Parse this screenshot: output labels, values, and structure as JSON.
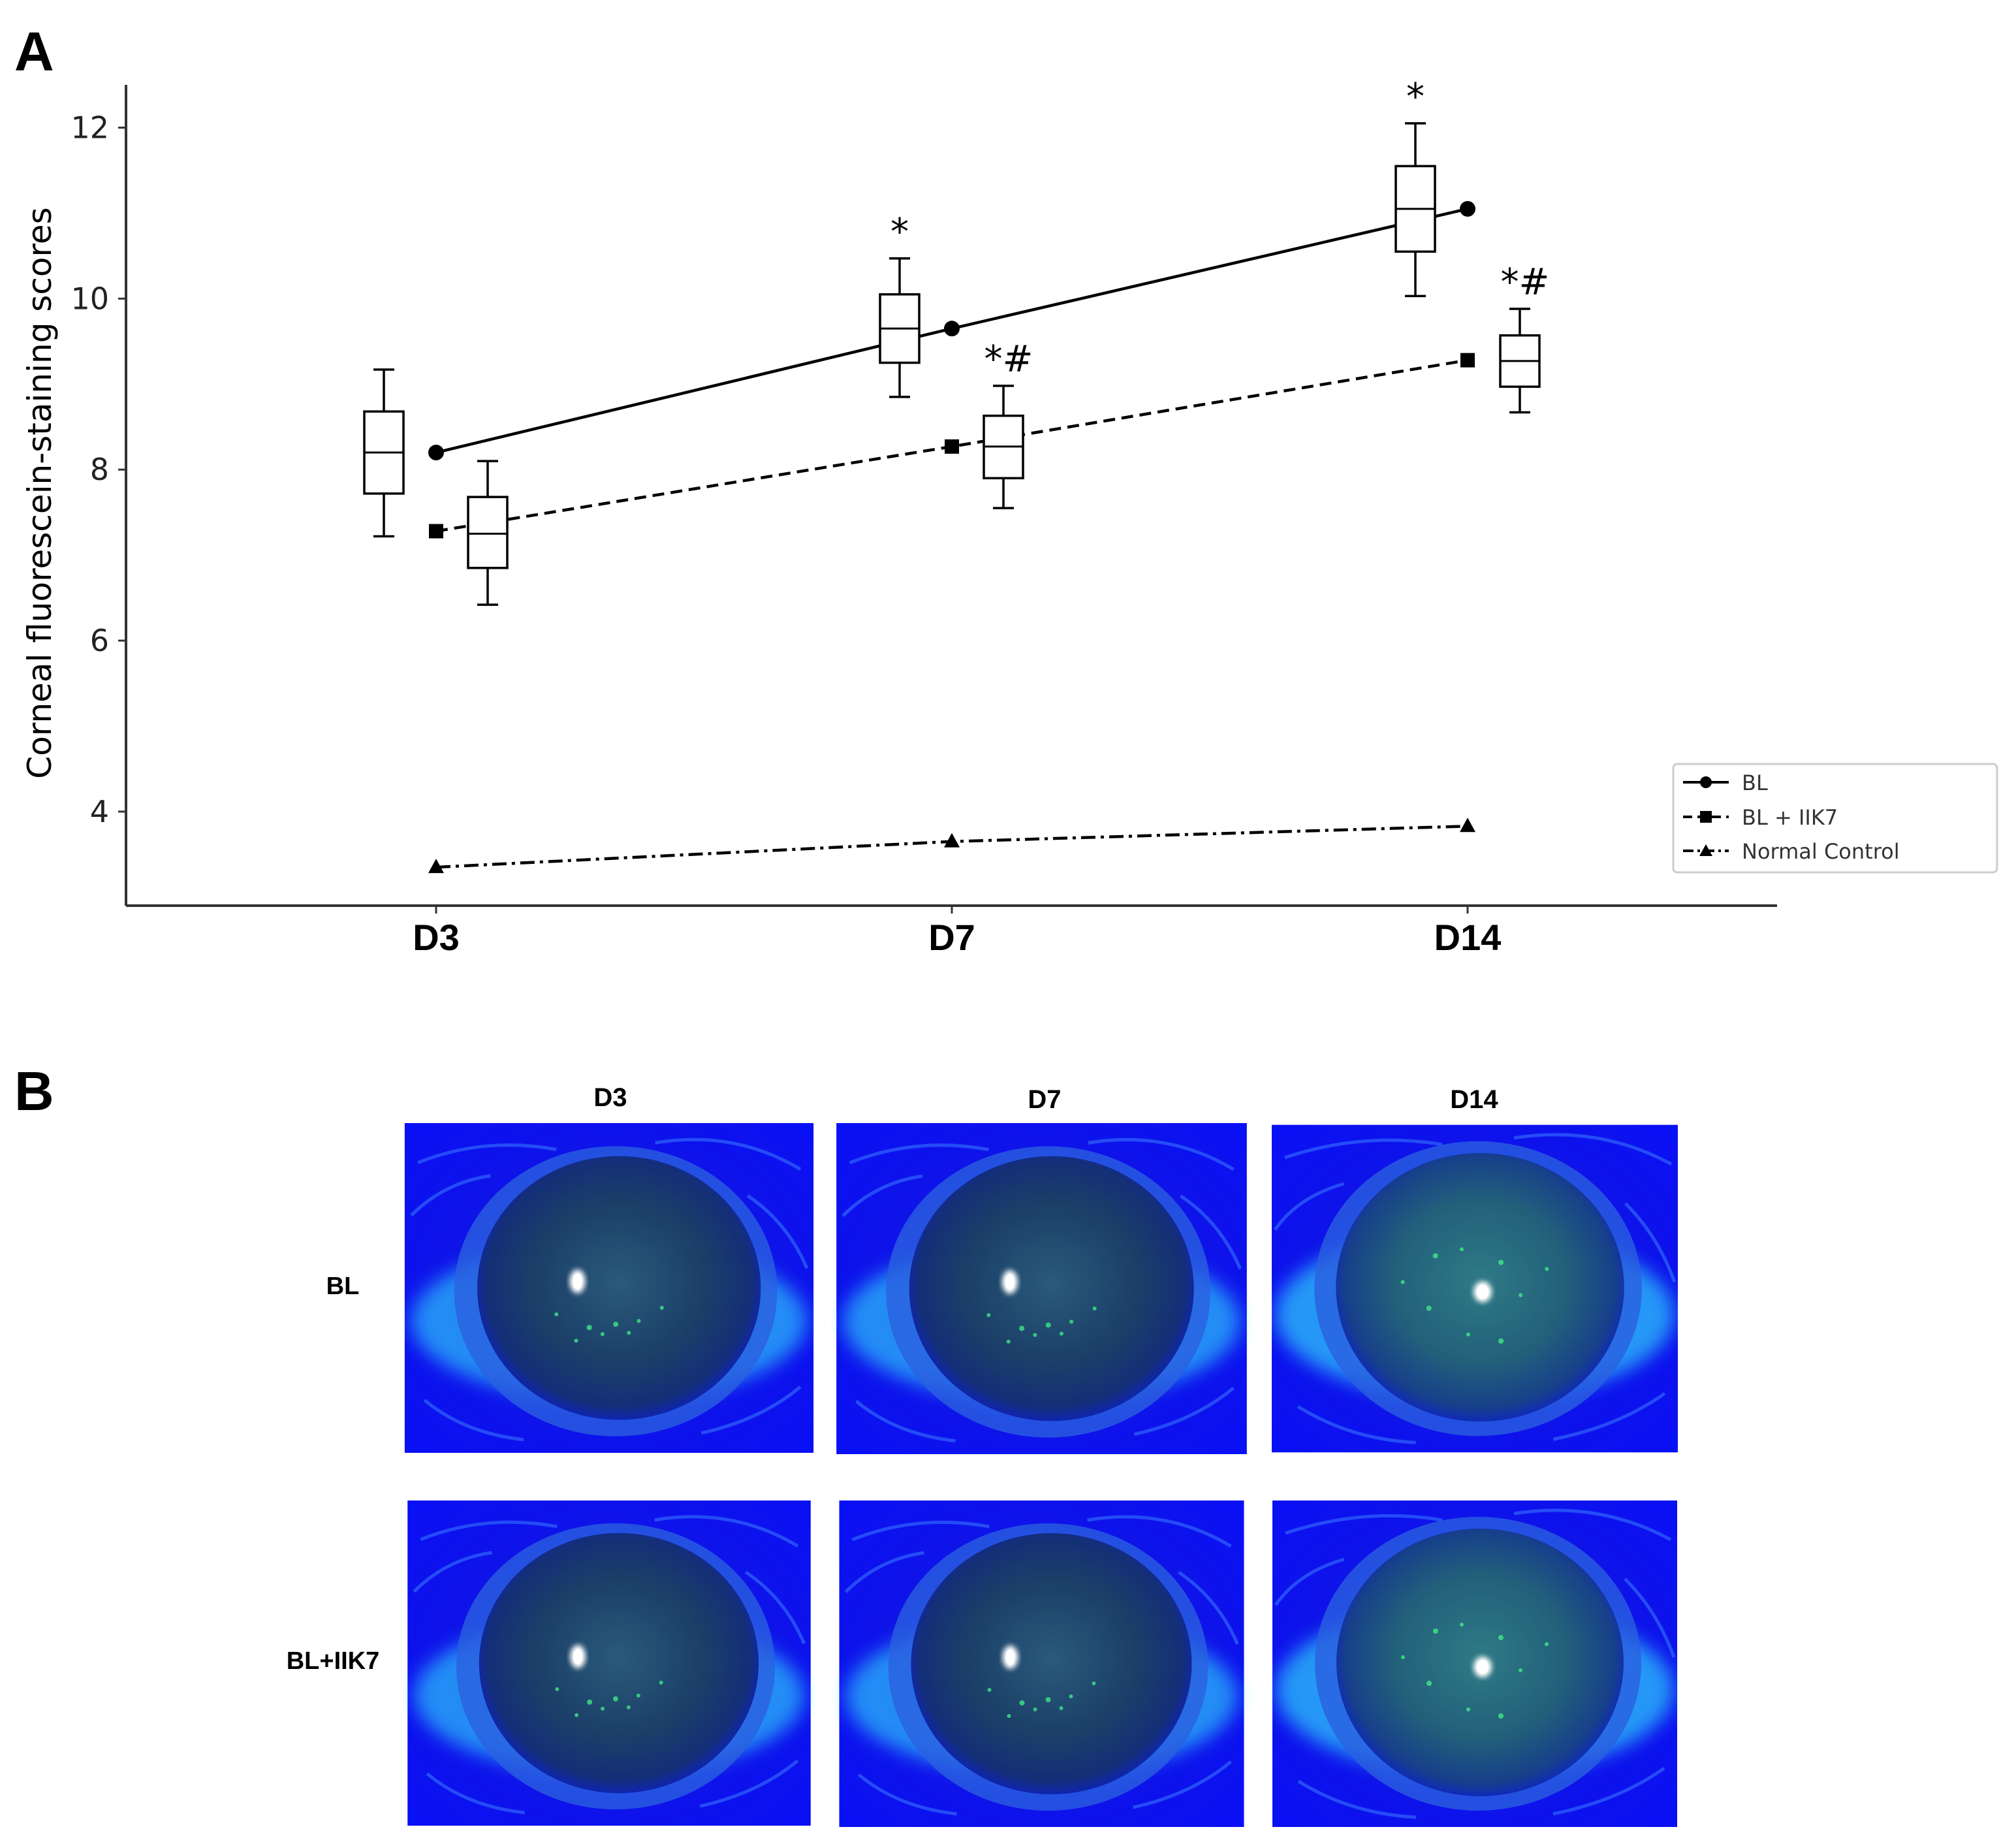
{
  "panels": {
    "a_label": "A",
    "b_label": "B"
  },
  "chart_data": {
    "type": "line",
    "title": "",
    "xlabel": "",
    "ylabel": "Corneal fluorescein-staining scores",
    "categories": [
      "D3",
      "D7",
      "D14"
    ],
    "ylim": [
      2.9,
      12.5
    ],
    "yticks": [
      4,
      6,
      8,
      10,
      12
    ],
    "grid": false,
    "legend_position": "bottom-right",
    "series": [
      {
        "name": "BL",
        "line_style": "solid",
        "marker": "circle",
        "values": [
          8.2,
          9.65,
          11.05
        ]
      },
      {
        "name": "BL + IIK7",
        "line_style": "dashed",
        "marker": "square",
        "values": [
          7.28,
          8.27,
          9.28
        ]
      },
      {
        "name": "Normal Control",
        "line_style": "dashdot",
        "marker": "triangle",
        "values": [
          3.35,
          3.65,
          3.83
        ]
      }
    ],
    "boxplots": [
      {
        "group": "BL",
        "category": "D3",
        "min": 7.22,
        "q1": 7.72,
        "median": 8.2,
        "q3": 8.68,
        "max": 9.17,
        "annotation": ""
      },
      {
        "group": "BL + IIK7",
        "category": "D3",
        "min": 6.42,
        "q1": 6.85,
        "median": 7.25,
        "q3": 7.68,
        "max": 8.1,
        "annotation": ""
      },
      {
        "group": "BL",
        "category": "D7",
        "min": 8.85,
        "q1": 9.25,
        "median": 9.65,
        "q3": 10.05,
        "max": 10.47,
        "annotation": "*"
      },
      {
        "group": "BL + IIK7",
        "category": "D7",
        "min": 7.55,
        "q1": 7.9,
        "median": 8.27,
        "q3": 8.63,
        "max": 8.98,
        "annotation": "*#"
      },
      {
        "group": "BL",
        "category": "D14",
        "min": 10.03,
        "q1": 10.55,
        "median": 11.05,
        "q3": 11.55,
        "max": 12.05,
        "annotation": "*"
      },
      {
        "group": "BL + IIK7",
        "category": "D14",
        "min": 8.67,
        "q1": 8.97,
        "median": 9.27,
        "q3": 9.57,
        "max": 9.88,
        "annotation": "*#"
      }
    ]
  },
  "image_grid": {
    "columns": [
      "D3",
      "D7",
      "D14"
    ],
    "rows": [
      "BL",
      "BL+IIK7"
    ]
  },
  "colors": {
    "line": "#000000",
    "axis": "#333333",
    "legend_border": "#cccccc",
    "eye_background": "#1010ff",
    "eye_glow": "#35f0ff",
    "eye_cornea": "#1a3d6a",
    "eye_stain": "#3ddc84"
  }
}
